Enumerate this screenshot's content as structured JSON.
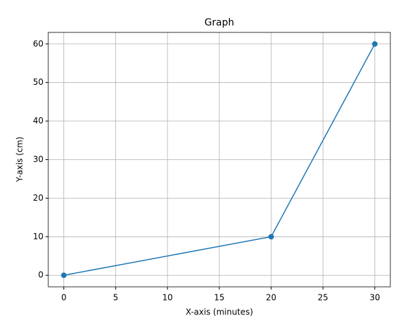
{
  "chart_data": {
    "type": "line",
    "title": "Graph",
    "x_label": "X-axis (minutes)",
    "y_label": "Y-axis (cm)",
    "x": [
      0,
      20,
      30
    ],
    "series": [
      {
        "color": "#1f77b4",
        "values": [
          0,
          10,
          60
        ]
      }
    ],
    "xlim": [
      -1.5,
      31.5
    ],
    "xticks": [
      0,
      5,
      10,
      15,
      20,
      25,
      30
    ],
    "ylim": [
      -3,
      63
    ],
    "yticks": [
      0,
      10,
      20,
      30,
      40,
      50,
      60
    ],
    "grid": true,
    "markers": true
  }
}
